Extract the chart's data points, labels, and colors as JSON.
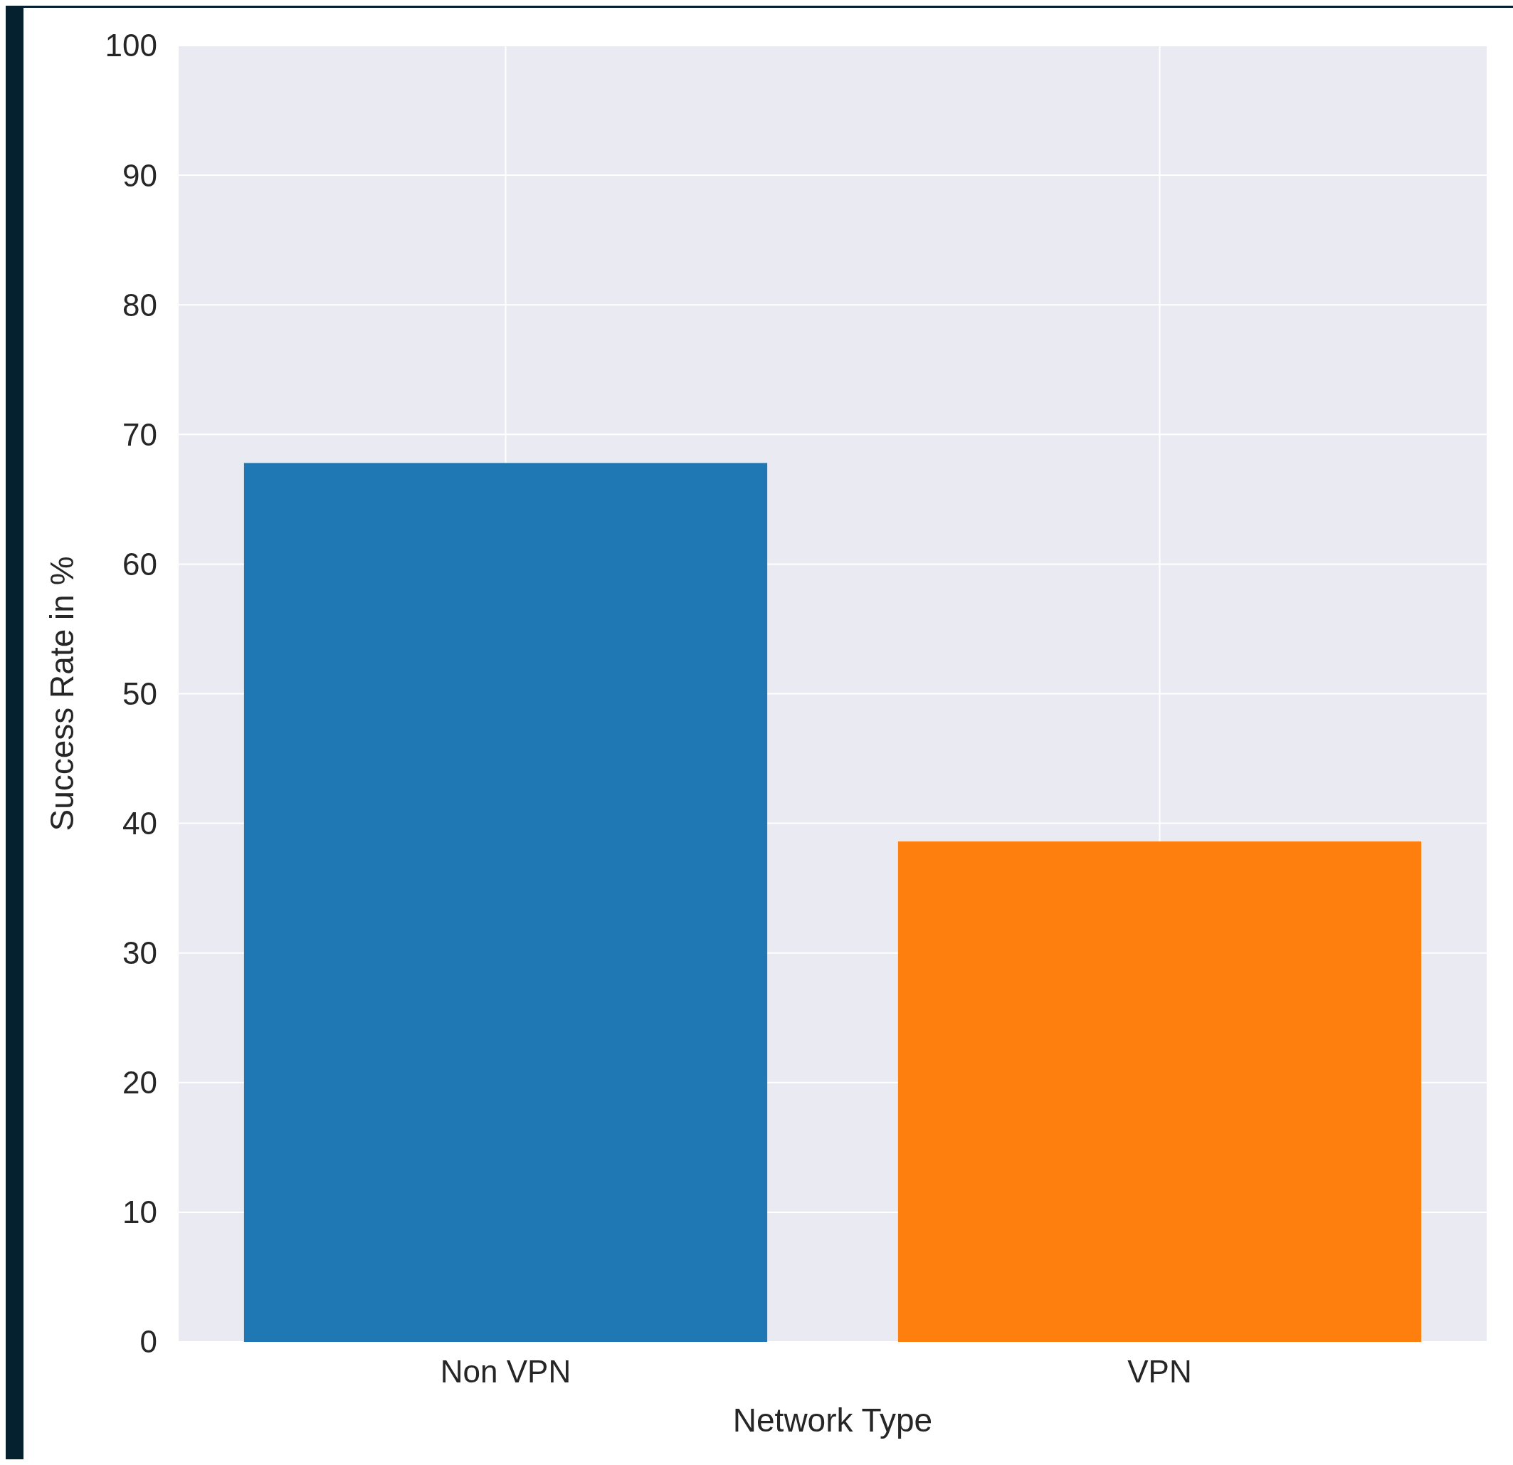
{
  "chart_data": {
    "type": "bar",
    "xlabel": "Network Type",
    "ylabel": "Success Rate in %",
    "categories": [
      "Non VPN",
      "VPN"
    ],
    "values": [
      67.8,
      38.6
    ],
    "colors": [
      "#1f77b4",
      "#ff7f0e"
    ],
    "ylim": [
      0,
      100
    ],
    "yticks": [
      0,
      10,
      20,
      30,
      40,
      50,
      60,
      70,
      80,
      90,
      100
    ],
    "grid": true
  }
}
